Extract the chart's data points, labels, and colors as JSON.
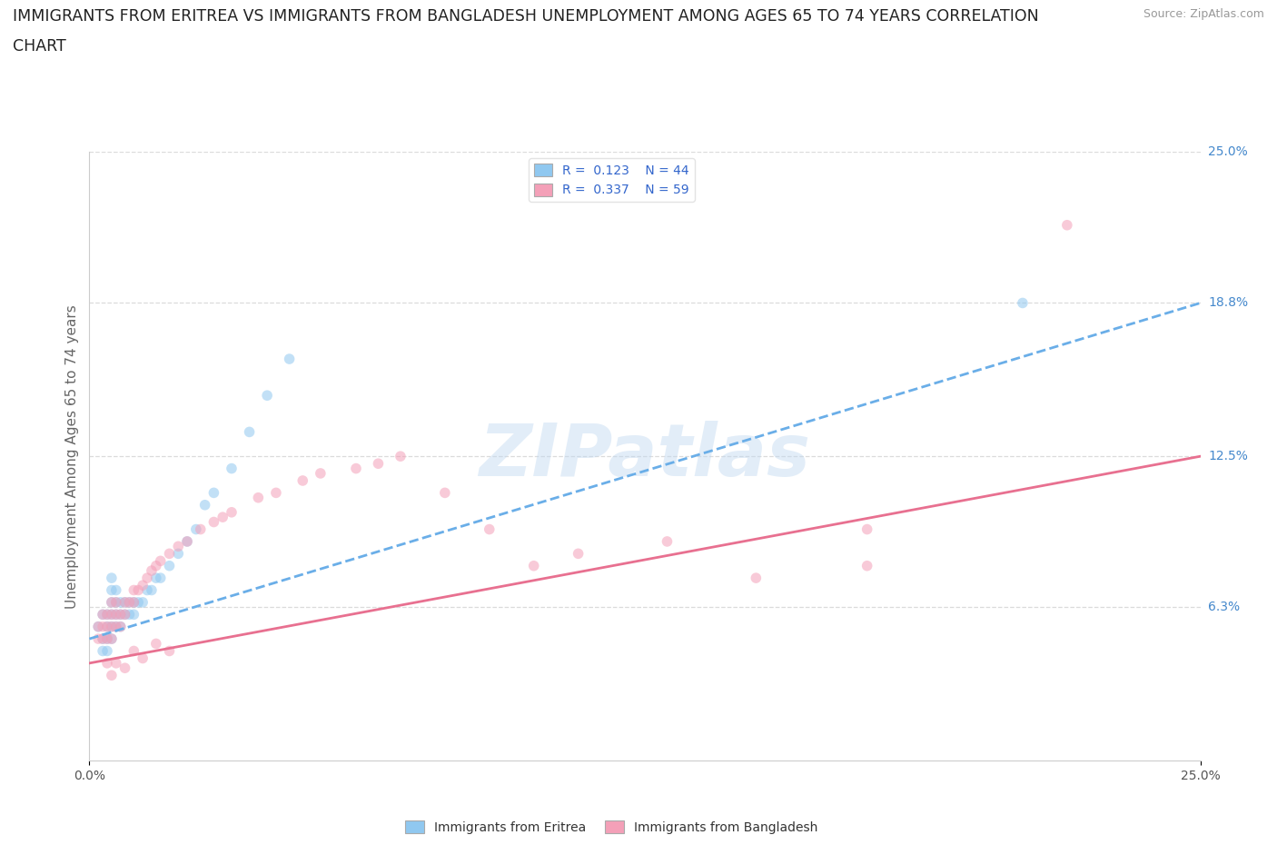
{
  "title_line1": "IMMIGRANTS FROM ERITREA VS IMMIGRANTS FROM BANGLADESH UNEMPLOYMENT AMONG AGES 65 TO 74 YEARS CORRELATION",
  "title_line2": "CHART",
  "source": "Source: ZipAtlas.com",
  "ylabel": "Unemployment Among Ages 65 to 74 years",
  "xlim": [
    0.0,
    0.25
  ],
  "ylim": [
    0.0,
    0.25
  ],
  "ytick_vals": [
    0.063,
    0.125,
    0.188,
    0.25
  ],
  "ytick_labels": [
    "6.3%",
    "12.5%",
    "18.8%",
    "25.0%"
  ],
  "xtick_vals": [
    0.0,
    0.25
  ],
  "xtick_labels": [
    "0.0%",
    "25.0%"
  ],
  "R_eritrea": 0.123,
  "N_eritrea": 44,
  "R_bangladesh": 0.337,
  "N_bangladesh": 59,
  "color_eritrea": "#90C8F0",
  "color_bangladesh": "#F4A0B8",
  "trendline_eritrea_color": "#6aaee8",
  "trendline_bangladesh_color": "#E87090",
  "watermark": "ZIPatlas",
  "legend_label_eritrea": "Immigrants from Eritrea",
  "legend_label_bangladesh": "Immigrants from Bangladesh",
  "title_fontsize": 12.5,
  "ylabel_fontsize": 11,
  "source_fontsize": 9,
  "legend_fontsize": 10,
  "marker_size": 70,
  "marker_alpha": 0.55,
  "grid_color": "#CCCCCC",
  "grid_alpha": 0.7,
  "background_color": "#FFFFFF",
  "eritrea_x": [
    0.002,
    0.003,
    0.003,
    0.003,
    0.004,
    0.004,
    0.004,
    0.004,
    0.005,
    0.005,
    0.005,
    0.005,
    0.005,
    0.005,
    0.006,
    0.006,
    0.006,
    0.006,
    0.007,
    0.007,
    0.007,
    0.008,
    0.008,
    0.009,
    0.009,
    0.01,
    0.01,
    0.011,
    0.012,
    0.013,
    0.014,
    0.015,
    0.016,
    0.018,
    0.02,
    0.022,
    0.024,
    0.026,
    0.028,
    0.032,
    0.036,
    0.04,
    0.045,
    0.21
  ],
  "eritrea_y": [
    0.055,
    0.045,
    0.05,
    0.06,
    0.045,
    0.05,
    0.055,
    0.06,
    0.05,
    0.055,
    0.06,
    0.065,
    0.07,
    0.075,
    0.055,
    0.06,
    0.065,
    0.07,
    0.055,
    0.06,
    0.065,
    0.06,
    0.065,
    0.06,
    0.065,
    0.06,
    0.065,
    0.065,
    0.065,
    0.07,
    0.07,
    0.075,
    0.075,
    0.08,
    0.085,
    0.09,
    0.095,
    0.105,
    0.11,
    0.12,
    0.135,
    0.15,
    0.165,
    0.188
  ],
  "bangladesh_x": [
    0.002,
    0.002,
    0.003,
    0.003,
    0.003,
    0.004,
    0.004,
    0.004,
    0.005,
    0.005,
    0.005,
    0.005,
    0.006,
    0.006,
    0.006,
    0.007,
    0.007,
    0.008,
    0.008,
    0.009,
    0.01,
    0.01,
    0.011,
    0.012,
    0.013,
    0.014,
    0.015,
    0.016,
    0.018,
    0.02,
    0.022,
    0.025,
    0.028,
    0.03,
    0.032,
    0.038,
    0.042,
    0.048,
    0.052,
    0.06,
    0.065,
    0.07,
    0.08,
    0.09,
    0.1,
    0.11,
    0.13,
    0.15,
    0.175,
    0.22,
    0.004,
    0.005,
    0.006,
    0.008,
    0.01,
    0.012,
    0.015,
    0.018,
    0.175
  ],
  "bangladesh_y": [
    0.05,
    0.055,
    0.05,
    0.055,
    0.06,
    0.05,
    0.055,
    0.06,
    0.05,
    0.055,
    0.06,
    0.065,
    0.055,
    0.06,
    0.065,
    0.055,
    0.06,
    0.06,
    0.065,
    0.065,
    0.065,
    0.07,
    0.07,
    0.072,
    0.075,
    0.078,
    0.08,
    0.082,
    0.085,
    0.088,
    0.09,
    0.095,
    0.098,
    0.1,
    0.102,
    0.108,
    0.11,
    0.115,
    0.118,
    0.12,
    0.122,
    0.125,
    0.11,
    0.095,
    0.08,
    0.085,
    0.09,
    0.075,
    0.095,
    0.22,
    0.04,
    0.035,
    0.04,
    0.038,
    0.045,
    0.042,
    0.048,
    0.045,
    0.08
  ],
  "trend_eritrea_x0": 0.0,
  "trend_eritrea_y0": 0.05,
  "trend_eritrea_x1": 0.25,
  "trend_eritrea_y1": 0.188,
  "trend_bangladesh_x0": 0.0,
  "trend_bangladesh_y0": 0.04,
  "trend_bangladesh_x1": 0.25,
  "trend_bangladesh_y1": 0.125
}
